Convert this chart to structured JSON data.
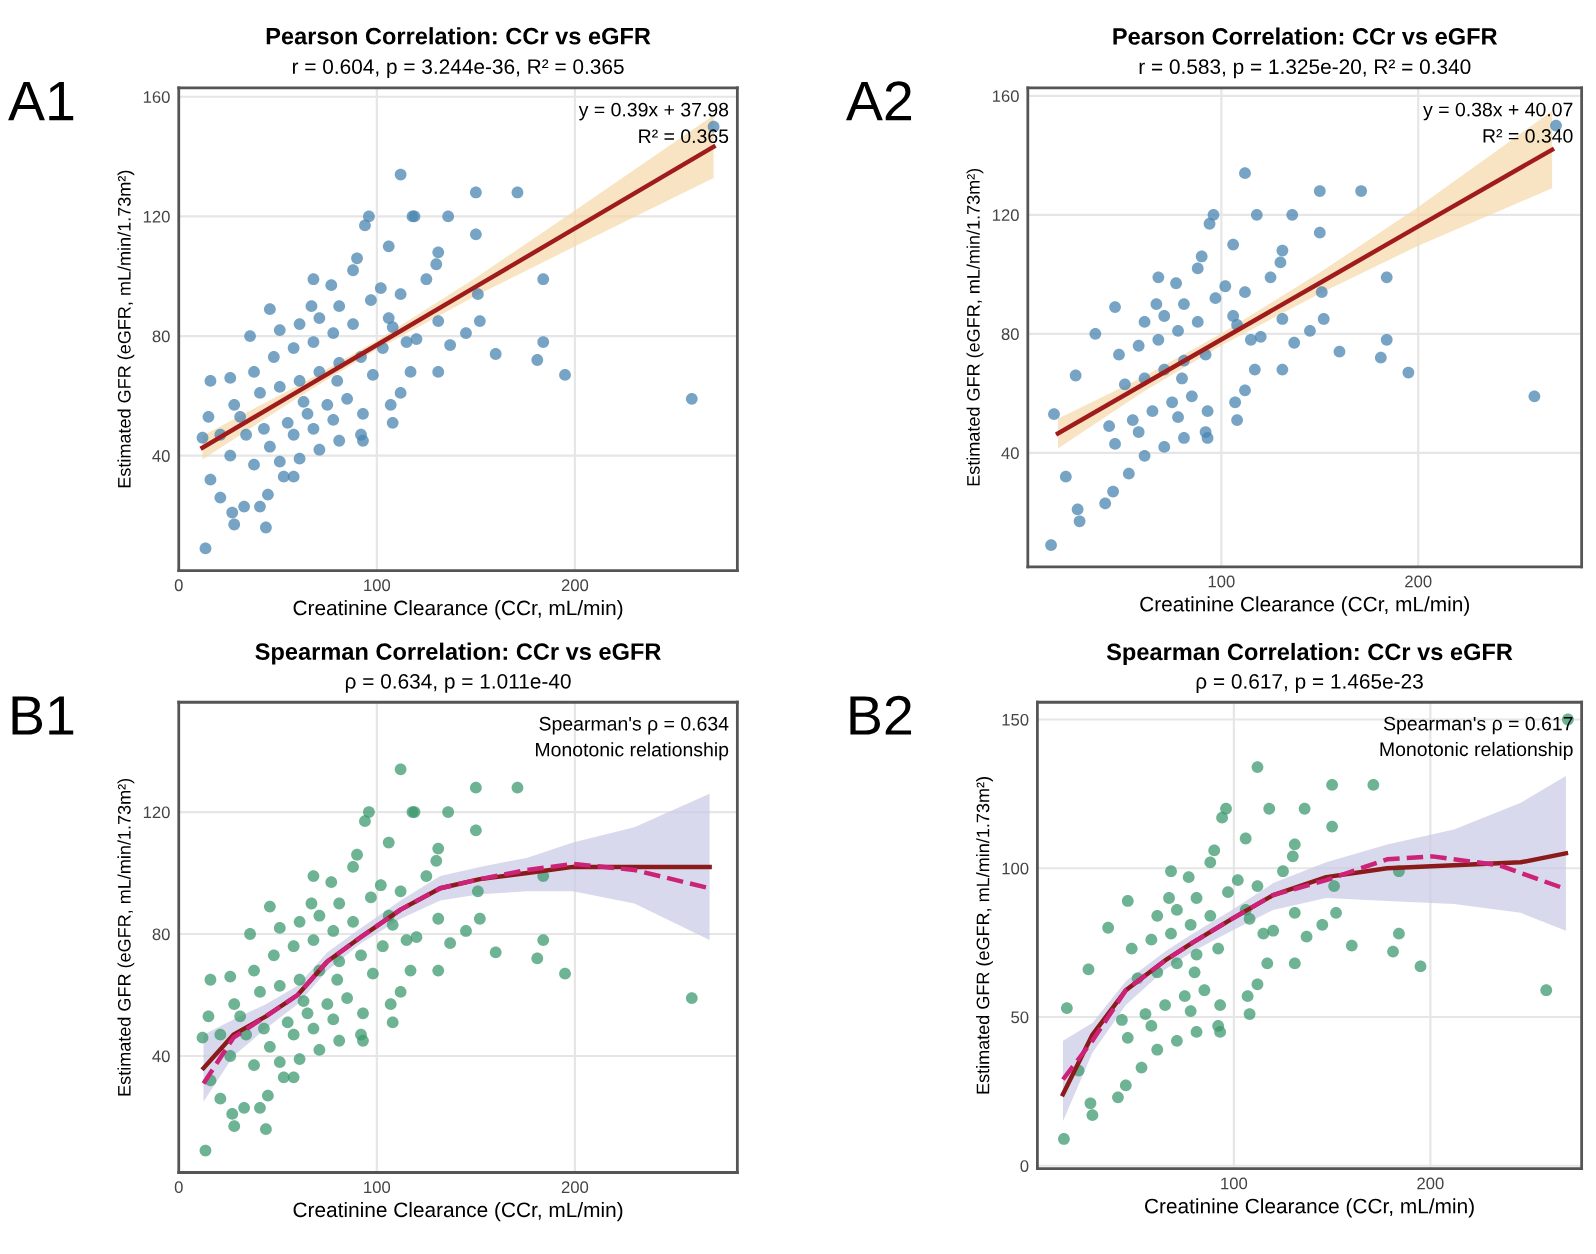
{
  "chart_data": [
    {
      "type": "scatter",
      "title": "Pearson Correlation: CCr vs eGFR",
      "subtitle": "r = 0.604, p = 3.244e-36, R² = 0.365",
      "xlabel": "Creatinine Clearance (CCr, mL/min)",
      "ylabel": "Estimated GFR (eGFR, mL/min/1.73m²)",
      "annotations": [
        "A1",
        "y = 0.39x + 37.98",
        "R² = 0.365"
      ],
      "xlim": [
        0,
        282
      ],
      "ylim": [
        1.6,
        163
      ],
      "xticks": [
        0,
        100,
        200
      ],
      "yticks": [
        40,
        80,
        120,
        160
      ],
      "grid": true,
      "legend": false,
      "series": [
        {
          "marker": "circle",
          "color": "#4a86b0",
          "x": [
            13.5,
            270,
            259,
            195,
            184,
            184,
            181,
            160,
            171,
            150,
            112,
            150,
            152,
            145,
            136,
            118,
            119,
            96,
            94,
            106,
            131,
            130,
            125,
            131,
            131,
            151,
            137,
            120,
            117,
            112,
            107,
            108,
            93,
            93,
            115,
            106,
            102,
            90,
            88,
            68,
            77,
            46,
            67,
            36,
            16,
            26,
            12,
            15,
            16,
            21,
            27,
            28,
            44,
            41,
            45,
            33,
            53,
            58,
            38,
            51,
            61,
            71,
            81,
            92,
            31,
            43,
            55,
            65,
            75,
            85,
            28,
            41,
            51,
            61,
            71,
            81,
            92,
            38,
            48,
            58,
            68,
            78,
            88,
            51,
            61,
            71,
            81,
            97,
            58,
            68,
            78,
            34,
            46,
            26,
            21,
            80,
            63,
            112,
            108,
            98,
            103
          ],
          "values": [
            9,
            150,
            59,
            67,
            99,
            78,
            72,
            74,
            128,
            128,
            134,
            114,
            85,
            81,
            120,
            120,
            120,
            120,
            117,
            110,
            108,
            104,
            99,
            85,
            68,
            94,
            77,
            79,
            68,
            61,
            57,
            51,
            54,
            45,
            78,
            86,
            96,
            106,
            102,
            99,
            97,
            89,
            90,
            80,
            65,
            66,
            46,
            53,
            32,
            26,
            21,
            17,
            16,
            23,
            27,
            23,
            33,
            33,
            37,
            38,
            39,
            42,
            45,
            47,
            53,
            49,
            51,
            54,
            57,
            59,
            57,
            61,
            63,
            65,
            68,
            71,
            73,
            68,
            73,
            76,
            78,
            81,
            84,
            82,
            84,
            86,
            90,
            92,
            47,
            49,
            52,
            47,
            43,
            40,
            47,
            65,
            58,
            94,
            83,
            67,
            76
          ]
        },
        {
          "type": "line",
          "color": "#a01c1c",
          "line_style": "solid",
          "x": [
            12,
            60,
            100,
            150,
            200,
            270
          ],
          "values": [
            42.7,
            61.4,
            77.0,
            96.5,
            116.0,
            143.3
          ],
          "lower": [
            38.7,
            59.4,
            75.5,
            93.5,
            110.0,
            132.8
          ],
          "upper": [
            46.7,
            63.4,
            78.5,
            99.5,
            122.0,
            153.8
          ]
        }
      ]
    },
    {
      "type": "scatter",
      "title": "Pearson Correlation: CCr vs eGFR",
      "subtitle": "r = 0.583, p = 1.325e-20, R² = 0.340",
      "xlabel": "Creatinine Clearance (CCr, mL/min)",
      "ylabel": "Estimated GFR (eGFR, mL/min/1.73m²)",
      "annotations": [
        "A2",
        "y = 0.38x + 40.07",
        "R² = 0.340"
      ],
      "xlim": [
        1.7,
        283
      ],
      "ylim": [
        1.7,
        162.7
      ],
      "xticks": [
        100,
        200
      ],
      "yticks": [
        40,
        80,
        120,
        160
      ],
      "grid": true,
      "legend": false,
      "series": [
        {
          "marker": "circle",
          "color": "#4a86b0",
          "x": [
            13.5,
            270,
            259,
            195,
            184,
            184,
            181,
            160,
            171,
            150,
            112,
            150,
            152,
            145,
            136,
            118,
            96,
            94,
            106,
            131,
            130,
            125,
            131,
            131,
            151,
            137,
            120,
            117,
            112,
            107,
            108,
            93,
            93,
            115,
            106,
            102,
            90,
            88,
            68,
            77,
            46,
            67,
            36,
            26,
            15,
            21,
            27,
            28,
            41,
            45,
            53,
            61,
            71,
            81,
            92,
            43,
            55,
            65,
            75,
            85,
            51,
            61,
            71,
            81,
            92,
            48,
            58,
            68,
            78,
            88,
            61,
            71,
            81,
            97,
            58,
            78,
            46,
            80,
            112,
            108
          ],
          "values": [
            9,
            150,
            59,
            67,
            99,
            78,
            72,
            74,
            128,
            128,
            134,
            114,
            85,
            81,
            120,
            120,
            120,
            117,
            110,
            108,
            104,
            99,
            85,
            68,
            94,
            77,
            79,
            68,
            61,
            57,
            51,
            54,
            45,
            78,
            86,
            96,
            106,
            102,
            99,
            97,
            89,
            90,
            80,
            66,
            53,
            32,
            21,
            17,
            23,
            27,
            33,
            39,
            42,
            45,
            47,
            49,
            51,
            54,
            57,
            59,
            63,
            65,
            68,
            71,
            73,
            73,
            76,
            78,
            81,
            84,
            84,
            86,
            90,
            92,
            47,
            52,
            43,
            65,
            94,
            83
          ]
        },
        {
          "type": "line",
          "color": "#a01c1c",
          "line_style": "solid",
          "x": [
            17,
            60,
            100,
            150,
            200,
            268
          ],
          "values": [
            46.5,
            62.9,
            78.1,
            97.1,
            116.1,
            141.9
          ],
          "lower": [
            41.5,
            60.4,
            76.1,
            93.6,
            109.6,
            128.9
          ],
          "upper": [
            51.5,
            65.4,
            80.1,
            100.6,
            122.6,
            154.9
          ]
        }
      ]
    },
    {
      "type": "scatter",
      "title": "Spearman Correlation: CCr vs eGFR",
      "subtitle": "ρ = 0.634, p = 1.011e-40",
      "xlabel": "Creatinine Clearance (CCr, mL/min)",
      "ylabel": "Estimated GFR (eGFR, mL/min/1.73m²)",
      "annotations": [
        "B1",
        "Spearman's ρ = 0.634",
        "Monotonic relationship"
      ],
      "xlim": [
        0,
        282
      ],
      "ylim": [
        1.8,
        156
      ],
      "xticks": [
        0,
        100,
        200
      ],
      "yticks": [
        40,
        80,
        120
      ],
      "grid": true,
      "legend": false,
      "series": [
        {
          "marker": "circle",
          "color": "#3d9a6f",
          "x": [
            13.5,
            259,
            195,
            184,
            184,
            181,
            160,
            171,
            150,
            112,
            150,
            152,
            145,
            136,
            118,
            119,
            96,
            94,
            106,
            131,
            130,
            125,
            131,
            131,
            151,
            137,
            120,
            117,
            112,
            107,
            108,
            93,
            93,
            115,
            106,
            102,
            90,
            88,
            68,
            77,
            46,
            67,
            36,
            16,
            26,
            12,
            15,
            16,
            21,
            27,
            28,
            44,
            41,
            45,
            33,
            53,
            58,
            38,
            51,
            61,
            71,
            81,
            92,
            31,
            43,
            55,
            65,
            75,
            85,
            28,
            41,
            51,
            61,
            71,
            81,
            92,
            38,
            48,
            58,
            68,
            78,
            88,
            51,
            61,
            71,
            81,
            97,
            58,
            68,
            78,
            34,
            46,
            26,
            21,
            80,
            63,
            112,
            108,
            98,
            103
          ],
          "values": [
            9,
            59,
            67,
            99,
            78,
            72,
            74,
            128,
            128,
            134,
            114,
            85,
            81,
            120,
            120,
            120,
            120,
            117,
            110,
            108,
            104,
            99,
            85,
            68,
            94,
            77,
            79,
            68,
            61,
            57,
            51,
            54,
            45,
            78,
            86,
            96,
            106,
            102,
            99,
            97,
            89,
            90,
            80,
            65,
            66,
            46,
            53,
            32,
            26,
            21,
            17,
            16,
            23,
            27,
            23,
            33,
            33,
            37,
            38,
            39,
            42,
            45,
            47,
            53,
            49,
            51,
            54,
            57,
            59,
            57,
            61,
            63,
            65,
            68,
            71,
            73,
            68,
            73,
            76,
            78,
            81,
            84,
            82,
            84,
            86,
            90,
            92,
            47,
            49,
            52,
            47,
            43,
            40,
            47,
            65,
            58,
            94,
            83,
            67,
            76
          ]
        },
        {
          "type": "line",
          "color": "#8b1a1a",
          "line_style": "solid",
          "x": [
            12.5,
            27.6,
            44,
            60,
            75,
            92,
            112,
            132,
            152,
            176,
            199,
            230,
            268
          ],
          "values": [
            36,
            47,
            53,
            60,
            71,
            79,
            88,
            95,
            98,
            100,
            102,
            102,
            102
          ],
          "lower": [
            25,
            40,
            49,
            57,
            68,
            77,
            85,
            91,
            93,
            94,
            94,
            90,
            78
          ],
          "upper": [
            47,
            52,
            57,
            63,
            74,
            82,
            91,
            99,
            102,
            105,
            110,
            115,
            126
          ]
        },
        {
          "type": "line",
          "color": "#cc2277",
          "line_style": "dashed",
          "x": [
            12.5,
            27.6,
            44,
            60,
            75,
            92,
            112,
            132,
            152,
            176,
            199,
            230,
            268
          ],
          "values": [
            31,
            46,
            53,
            60,
            71,
            79,
            88,
            95,
            98,
            101,
            103,
            101,
            95
          ]
        }
      ]
    },
    {
      "type": "scatter",
      "title": "Spearman Correlation: CCr vs eGFR",
      "subtitle": "ρ = 0.617, p = 1.465e-23",
      "xlabel": "Creatinine Clearance (CCr, mL/min)",
      "ylabel": "Estimated GFR (eGFR, mL/min/1.73m²)",
      "annotations": [
        "B2",
        "Spearman's ρ = 0.617",
        "Monotonic relationship"
      ],
      "xlim": [
        0,
        277
      ],
      "ylim": [
        -1,
        155.8
      ],
      "xticks": [
        100,
        200
      ],
      "yticks": [
        0,
        50,
        100,
        150
      ],
      "grid": true,
      "legend": false,
      "series": [
        {
          "marker": "circle",
          "color": "#3d9a6f",
          "x": [
            13.5,
            270,
            259,
            195,
            184,
            184,
            181,
            160,
            171,
            150,
            112,
            150,
            152,
            145,
            136,
            118,
            96,
            94,
            106,
            131,
            130,
            125,
            131,
            131,
            151,
            137,
            120,
            117,
            112,
            107,
            108,
            93,
            93,
            115,
            106,
            102,
            90,
            88,
            68,
            77,
            46,
            67,
            36,
            26,
            15,
            21,
            27,
            28,
            41,
            45,
            53,
            61,
            71,
            81,
            92,
            43,
            55,
            65,
            75,
            85,
            51,
            61,
            71,
            81,
            92,
            48,
            58,
            68,
            78,
            88,
            61,
            71,
            81,
            97,
            58,
            78,
            46,
            80,
            112,
            108
          ],
          "values": [
            9,
            150,
            59,
            67,
            99,
            78,
            72,
            74,
            128,
            128,
            134,
            114,
            85,
            81,
            120,
            120,
            120,
            117,
            110,
            108,
            104,
            99,
            85,
            68,
            94,
            77,
            79,
            68,
            61,
            57,
            51,
            54,
            45,
            78,
            86,
            96,
            106,
            102,
            99,
            97,
            89,
            90,
            80,
            66,
            53,
            32,
            21,
            17,
            23,
            27,
            33,
            39,
            42,
            45,
            47,
            49,
            51,
            54,
            57,
            59,
            63,
            65,
            68,
            71,
            73,
            73,
            76,
            78,
            81,
            84,
            84,
            86,
            90,
            92,
            47,
            52,
            43,
            65,
            94,
            83
          ]
        },
        {
          "type": "line",
          "color": "#8b1a1a",
          "line_style": "solid",
          "x": [
            13,
            28,
            45,
            65,
            79,
            99,
            120,
            147,
            178,
            212,
            246,
            269
          ],
          "values": [
            24,
            44,
            59,
            69,
            75,
            83,
            91,
            97,
            100,
            101,
            102,
            105
          ],
          "lower": [
            15,
            38,
            54,
            66,
            72,
            79,
            86,
            90,
            89,
            88,
            85,
            79
          ],
          "upper": [
            42,
            48,
            62,
            72,
            78,
            86,
            95,
            102,
            108,
            113,
            122,
            131
          ]
        },
        {
          "type": "line",
          "color": "#cc2277",
          "line_style": "dashed",
          "x": [
            13,
            28,
            45,
            65,
            79,
            99,
            120,
            147,
            178,
            201,
            235,
            269
          ],
          "values": [
            29,
            42,
            59,
            69,
            75,
            83,
            91,
            96,
            103,
            104,
            101,
            93
          ]
        }
      ]
    }
  ]
}
